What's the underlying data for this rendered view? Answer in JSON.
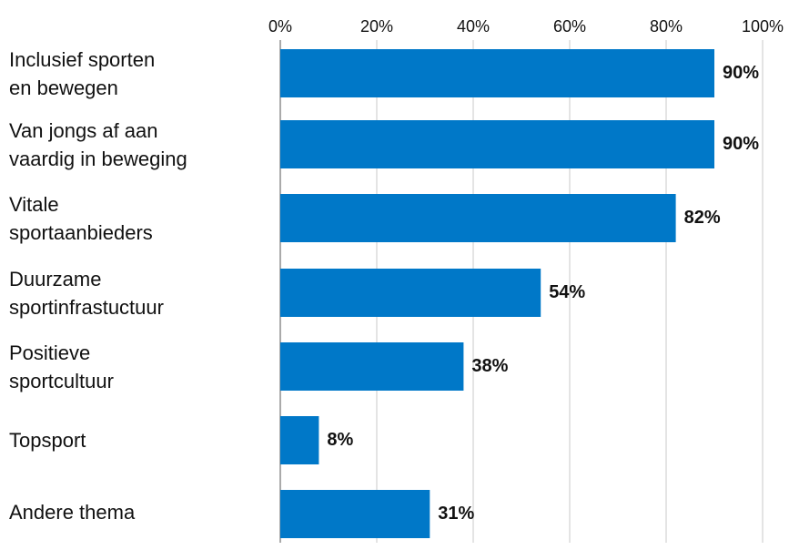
{
  "chart_data": {
    "type": "bar",
    "orientation": "horizontal",
    "categories": [
      "Inclusief sporten\nen bewegen",
      "Van jongs af aan\nvaardig in beweging",
      "Vitale\nsportaanbieders",
      "Duurzame\nsportinfrastuctuur",
      "Positieve\nsportcultuur",
      "Topsport",
      "Andere thema"
    ],
    "values": [
      90,
      90,
      82,
      54,
      38,
      8,
      31
    ],
    "value_labels": [
      "90%",
      "90%",
      "82%",
      "54%",
      "38%",
      "8%",
      "31%"
    ],
    "xticks": [
      "0%",
      "20%",
      "40%",
      "60%",
      "80%",
      "100%"
    ],
    "xlim": [
      0,
      100
    ],
    "axis_position": "top",
    "grid": true,
    "title": "",
    "xlabel": "",
    "ylabel": ""
  },
  "colors": {
    "bar": "#0078C8",
    "grid": "#c8c8c8",
    "text": "#111111"
  }
}
